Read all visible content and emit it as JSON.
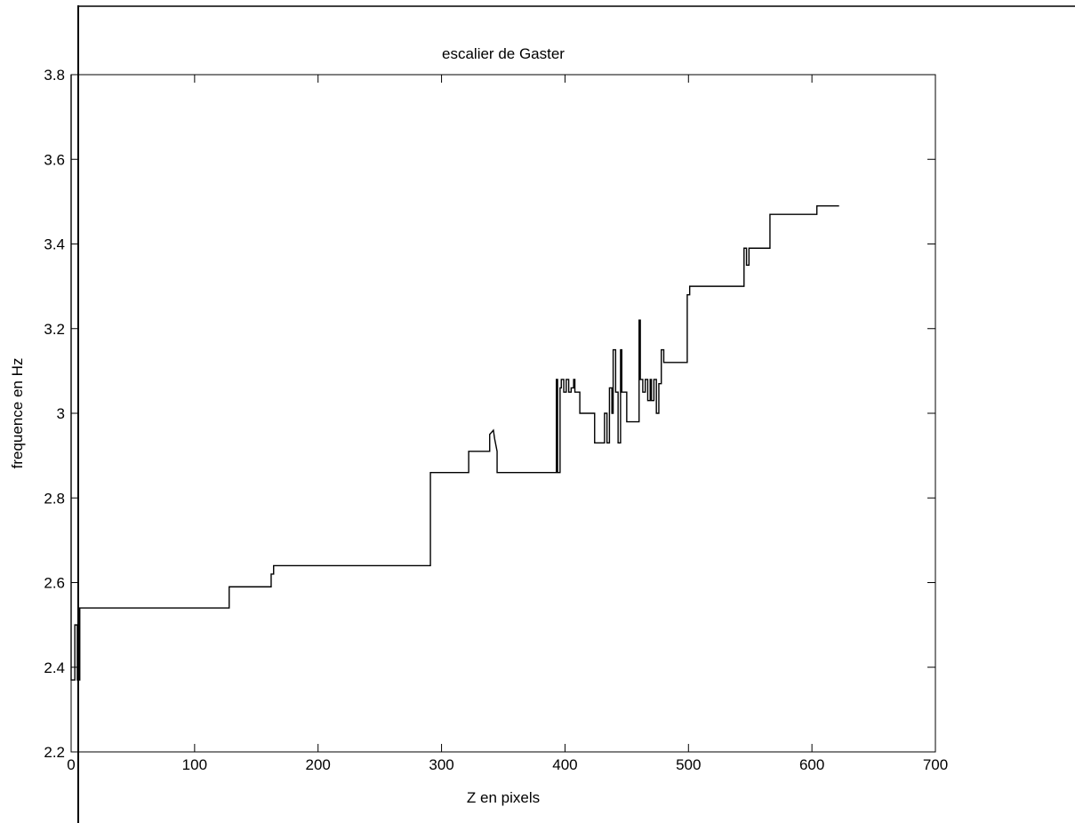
{
  "chart_data": {
    "type": "line",
    "title": "escalier de Gaster",
    "xlabel": "Z en pixels",
    "ylabel": "frequence en Hz",
    "xlim": [
      0,
      700
    ],
    "ylim": [
      2.2,
      3.8
    ],
    "x_ticks": [
      0,
      100,
      200,
      300,
      400,
      500,
      600,
      700
    ],
    "x_tick_labels": [
      "0",
      "100",
      "200",
      "300",
      "400",
      "500",
      "600",
      "700"
    ],
    "y_ticks": [
      2.2,
      2.4,
      2.6,
      2.8,
      3.0,
      3.2,
      3.4,
      3.6,
      3.8
    ],
    "y_tick_labels": [
      "2.2",
      "2.4",
      "2.6",
      "2.8",
      "3",
      "3.2",
      "3.4",
      "3.6",
      "3.8"
    ],
    "grid": false,
    "line_color": "#000000",
    "series": [
      {
        "x": [
          0,
          0,
          3,
          3,
          5,
          5,
          7,
          7,
          128,
          128,
          130,
          130,
          162,
          162,
          164,
          164,
          291,
          291,
          293,
          293,
          322,
          322,
          324,
          324,
          339,
          339,
          342,
          343,
          345,
          345,
          348,
          348,
          393,
          393,
          394,
          394,
          396,
          396,
          397,
          397,
          399,
          399,
          401,
          401,
          403,
          403,
          405,
          405,
          407,
          407,
          408,
          408,
          410,
          410,
          412,
          412,
          424,
          424,
          432,
          432,
          434,
          434,
          436,
          436,
          438,
          438,
          439,
          439,
          441,
          441,
          443,
          443,
          445,
          445,
          446,
          446,
          448,
          448,
          450,
          450,
          460,
          460,
          461,
          461,
          463,
          463,
          465,
          465,
          467,
          467,
          469,
          469,
          470,
          470,
          472,
          472,
          474,
          474,
          476,
          476,
          478,
          478,
          480,
          480,
          499,
          499,
          501,
          501,
          503,
          503,
          545,
          545,
          547,
          547,
          549,
          549,
          551,
          551,
          566,
          566,
          568,
          568,
          604,
          604,
          606,
          606,
          622
        ],
        "y": [
          3.8,
          2.37,
          2.37,
          2.5,
          2.5,
          2.37,
          2.37,
          2.54,
          2.54,
          2.59,
          2.59,
          2.59,
          2.59,
          2.62,
          2.62,
          2.64,
          2.64,
          2.86,
          2.86,
          2.86,
          2.86,
          2.91,
          2.91,
          2.91,
          2.91,
          2.95,
          2.96,
          2.94,
          2.91,
          2.86,
          2.86,
          2.86,
          2.86,
          3.08,
          3.08,
          2.86,
          2.86,
          3.06,
          3.06,
          3.08,
          3.08,
          3.05,
          3.05,
          3.08,
          3.08,
          3.05,
          3.05,
          3.06,
          3.06,
          3.08,
          3.08,
          3.05,
          3.05,
          3.05,
          3.05,
          3.0,
          3.0,
          2.93,
          2.93,
          3.0,
          3.0,
          2.93,
          2.93,
          3.06,
          3.06,
          3.0,
          3.0,
          3.15,
          3.15,
          3.05,
          3.05,
          2.93,
          2.93,
          3.15,
          3.15,
          3.05,
          3.05,
          3.05,
          3.05,
          2.98,
          2.98,
          3.22,
          3.22,
          3.08,
          3.08,
          3.05,
          3.05,
          3.08,
          3.08,
          3.03,
          3.03,
          3.08,
          3.08,
          3.03,
          3.03,
          3.08,
          3.08,
          3.0,
          3.0,
          3.07,
          3.07,
          3.15,
          3.15,
          3.12,
          3.12,
          3.28,
          3.28,
          3.3,
          3.3,
          3.3,
          3.3,
          3.39,
          3.39,
          3.35,
          3.35,
          3.39,
          3.39,
          3.39,
          3.39,
          3.47,
          3.47,
          3.47,
          3.47,
          3.49,
          3.49,
          3.49,
          3.49
        ]
      }
    ]
  }
}
